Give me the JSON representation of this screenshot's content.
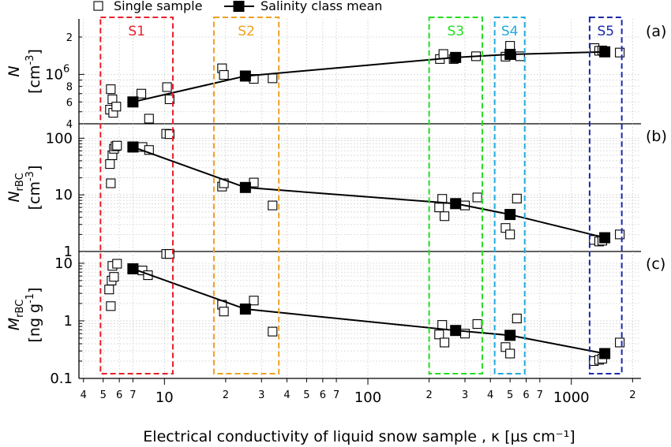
{
  "chart_data": {
    "type": "scatter",
    "xlabel": "Electrical conductivity of liquid snow sample , κ [µs cm⁻¹]",
    "x_scale": "log",
    "xlim": [
      3.8,
      2200
    ],
    "x_major_ticks": [
      10,
      100,
      1000
    ],
    "x_minor_ticks": [
      4,
      5,
      6,
      7,
      20,
      30,
      40,
      50,
      60,
      70,
      200,
      300,
      400,
      500,
      600,
      700,
      2000
    ],
    "legend": {
      "position": "top",
      "entries": [
        {
          "label": "Single sample",
          "marker": "open-square"
        },
        {
          "label": "Salinity class mean",
          "marker": "filled-square-line"
        }
      ]
    },
    "classes": [
      {
        "name": "S1",
        "color": "#e8202a",
        "range": [
          4.85,
          11.0
        ]
      },
      {
        "name": "S2",
        "color": "#f0a020",
        "range": [
          17.5,
          36.5
        ]
      },
      {
        "name": "S3",
        "color": "#22dd22",
        "range": [
          200,
          365
        ]
      },
      {
        "name": "S4",
        "color": "#22aadd",
        "range": [
          420,
          590
        ]
      },
      {
        "name": "S5",
        "color": "#1a2aa8",
        "range": [
          1230,
          1770
        ]
      }
    ],
    "panels": [
      {
        "id": "a",
        "panel_label": "(a)",
        "ylabel_main": "N",
        "ylabel_sub": "",
        "ylabel_unit": "[cm",
        "ylabel_unit_exp": "-3",
        "ylabel_unit_close": "]",
        "y_scale": "log",
        "ylim": [
          400000,
          2800000
        ],
        "y_major_ticks": [
          {
            "value": 1000000,
            "label": "10",
            "exp": "6"
          }
        ],
        "y_minor_ticks": [
          {
            "value": 400000,
            "label": "4"
          },
          {
            "value": 600000,
            "label": "6"
          },
          {
            "value": 700000,
            "label": ""
          },
          {
            "value": 800000,
            "label": "8"
          },
          {
            "value": 900000,
            "label": ""
          },
          {
            "value": 2000000,
            "label": "2"
          }
        ],
        "singles": [
          [
            5.4,
            520000
          ],
          [
            5.45,
            760000
          ],
          [
            5.55,
            630000
          ],
          [
            5.6,
            490000
          ],
          [
            5.8,
            550000
          ],
          [
            7.7,
            700000
          ],
          [
            8.4,
            440000
          ],
          [
            10.3,
            790000
          ],
          [
            10.6,
            630000
          ],
          [
            19.2,
            1120000
          ],
          [
            19.6,
            990000
          ],
          [
            27.5,
            920000
          ],
          [
            34.0,
            930000
          ],
          [
            226,
            1330000
          ],
          [
            235,
            1460000
          ],
          [
            264,
            1330000
          ],
          [
            340,
            1400000
          ],
          [
            475,
            1390000
          ],
          [
            500,
            1700000
          ],
          [
            560,
            1400000
          ],
          [
            1300,
            1630000
          ],
          [
            1370,
            1550000
          ],
          [
            1420,
            1560000
          ],
          [
            1730,
            1500000
          ]
        ],
        "means": [
          [
            7.0,
            600000
          ],
          [
            25.0,
            970000
          ],
          [
            270,
            1370000
          ],
          [
            500,
            1450000
          ],
          [
            1460,
            1520000
          ]
        ]
      },
      {
        "id": "b",
        "panel_label": "(b)",
        "ylabel_main": "N",
        "ylabel_sub": "rBC",
        "ylabel_unit": "[cm",
        "ylabel_unit_exp": "-3",
        "ylabel_unit_close": "]",
        "y_scale": "log",
        "ylim": [
          1,
          180
        ],
        "y_major_ticks": [
          {
            "value": 1,
            "label": "1"
          },
          {
            "value": 10,
            "label": "10"
          },
          {
            "value": 100,
            "label": "100"
          }
        ],
        "y_minor_ticks": [],
        "singles": [
          [
            5.4,
            35
          ],
          [
            5.45,
            16
          ],
          [
            5.55,
            50
          ],
          [
            5.65,
            65
          ],
          [
            5.75,
            72
          ],
          [
            5.85,
            74
          ],
          [
            7.8,
            70
          ],
          [
            8.4,
            62
          ],
          [
            10.2,
            120
          ],
          [
            10.6,
            118
          ],
          [
            19.2,
            14
          ],
          [
            19.6,
            16
          ],
          [
            27.5,
            16.5
          ],
          [
            34.0,
            6.5
          ],
          [
            224,
            6
          ],
          [
            232,
            8.5
          ],
          [
            238,
            4.2
          ],
          [
            300,
            6.5
          ],
          [
            345,
            9
          ],
          [
            475,
            2.6
          ],
          [
            500,
            2.0
          ],
          [
            540,
            8.6
          ],
          [
            1290,
            1.6
          ],
          [
            1370,
            1.5
          ],
          [
            1420,
            1.55
          ],
          [
            1730,
            2.0
          ]
        ],
        "means": [
          [
            7.0,
            70
          ],
          [
            25.0,
            13.5
          ],
          [
            270,
            7
          ],
          [
            500,
            4.5
          ],
          [
            1460,
            1.75
          ]
        ]
      },
      {
        "id": "c",
        "panel_label": "(c)",
        "ylabel_main": "M",
        "ylabel_sub": "rBC",
        "ylabel_unit": "[ng g",
        "ylabel_unit_exp": "-1",
        "ylabel_unit_close": "]",
        "y_scale": "log",
        "ylim": [
          0.1,
          16
        ],
        "y_major_ticks": [
          {
            "value": 0.1,
            "label": "0.1"
          },
          {
            "value": 1,
            "label": "1"
          },
          {
            "value": 10,
            "label": "10"
          }
        ],
        "y_minor_ticks": [],
        "singles": [
          [
            5.35,
            3.5
          ],
          [
            5.45,
            1.8
          ],
          [
            5.5,
            5.0
          ],
          [
            5.55,
            9.0
          ],
          [
            5.65,
            5.8
          ],
          [
            5.85,
            9.8
          ],
          [
            7.8,
            7.5
          ],
          [
            8.3,
            6.2
          ],
          [
            10.2,
            14.5
          ],
          [
            10.6,
            14.5
          ],
          [
            19.2,
            1.9
          ],
          [
            19.6,
            1.45
          ],
          [
            27.5,
            2.25
          ],
          [
            34.0,
            0.65
          ],
          [
            224,
            0.58
          ],
          [
            232,
            0.85
          ],
          [
            238,
            0.42
          ],
          [
            300,
            0.6
          ],
          [
            345,
            0.88
          ],
          [
            475,
            0.35
          ],
          [
            500,
            0.27
          ],
          [
            540,
            1.1
          ],
          [
            1290,
            0.2
          ],
          [
            1370,
            0.21
          ],
          [
            1420,
            0.22
          ],
          [
            1730,
            0.42
          ]
        ],
        "means": [
          [
            7.0,
            8
          ],
          [
            25.0,
            1.6
          ],
          [
            270,
            0.68
          ],
          [
            500,
            0.56
          ],
          [
            1460,
            0.27
          ]
        ]
      }
    ]
  }
}
